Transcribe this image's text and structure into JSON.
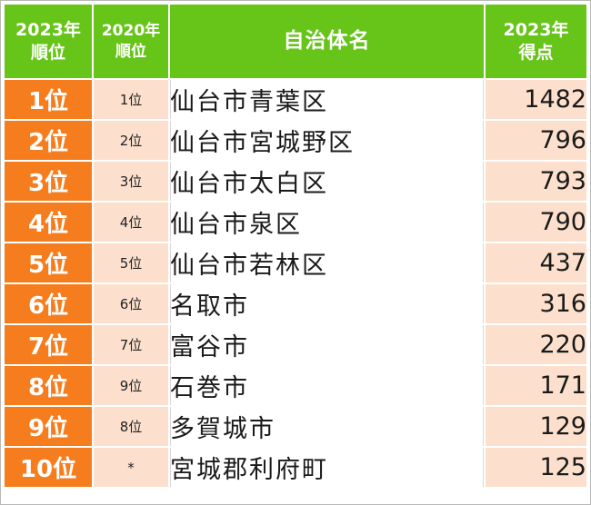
{
  "header": {
    "rank2023": [
      "2023年",
      "順位"
    ],
    "rank2020": [
      "2020年",
      "順位"
    ],
    "name": "自治体名",
    "score2023": [
      "2023年",
      "得点"
    ]
  },
  "rows": [
    {
      "rank2023": "1位",
      "rank2020": "1位",
      "name": "仙台市青葉区",
      "score": "1482"
    },
    {
      "rank2023": "2位",
      "rank2020": "2位",
      "name": "仙台市宮城野区",
      "score": "796"
    },
    {
      "rank2023": "3位",
      "rank2020": "3位",
      "name": "仙台市太白区",
      "score": "793"
    },
    {
      "rank2023": "4位",
      "rank2020": "4位",
      "name": "仙台市泉区",
      "score": "790"
    },
    {
      "rank2023": "5位",
      "rank2020": "5位",
      "name": "仙台市若林区",
      "score": "437"
    },
    {
      "rank2023": "6位",
      "rank2020": "6位",
      "name": "名取市",
      "score": "316"
    },
    {
      "rank2023": "7位",
      "rank2020": "7位",
      "name": "富谷市",
      "score": "220"
    },
    {
      "rank2023": "8位",
      "rank2020": "9位",
      "name": "石巻市",
      "score": "171"
    },
    {
      "rank2023": "9位",
      "rank2020": "8位",
      "name": "多賀城市",
      "score": "129"
    },
    {
      "rank2023": "10位",
      "rank2020": "*",
      "name": "宮城郡利府町",
      "score": "125"
    }
  ],
  "colors": {
    "header_green": "#67c419",
    "rank_orange": "#f67d1e",
    "light_peach": "#fce0cd"
  }
}
